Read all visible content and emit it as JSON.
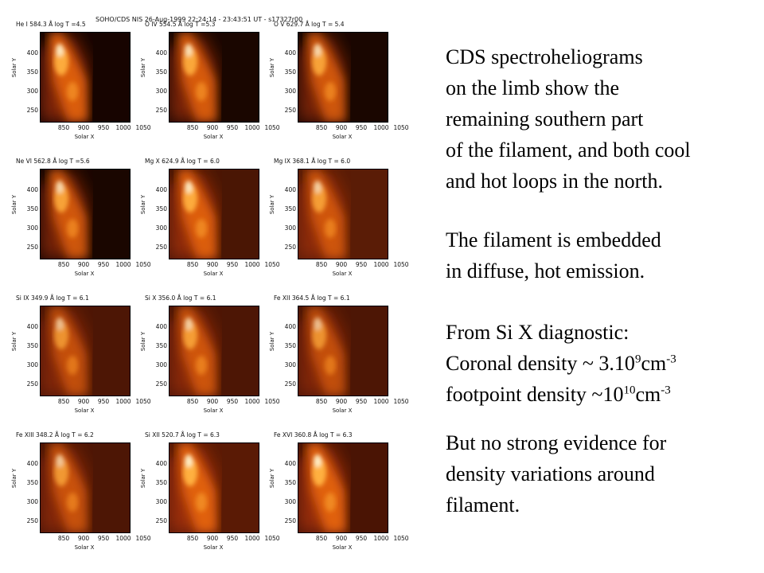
{
  "figure": {
    "header": "SOHO/CDS NIS  26-Aug-1999 22:24:14 - 23:43:51 UT - s17327r00",
    "ylabel": "Solar Y",
    "xlabel": "Solar X",
    "yticks": [
      "400",
      "350",
      "300",
      "250"
    ],
    "xticks": [
      "850",
      "900",
      "950",
      "1000",
      "1050"
    ],
    "panels": [
      {
        "title": "He I  584.3 Å log T =4.5"
      },
      {
        "title": "O IV  554.5 Å log T =5.3"
      },
      {
        "title": "O V  629.7 Å log T = 5.4"
      },
      {
        "title": "Ne VI  562.8 Å log T =5.6"
      },
      {
        "title": "Mg X  624.9 Å log T = 6.0"
      },
      {
        "title": "Mg IX  368.1 Å log T = 6.0"
      },
      {
        "title": "Si IX  349.9 Å log T = 6.1"
      },
      {
        "title": "Si X  356.0 Å log T = 6.1"
      },
      {
        "title": "Fe XII  364.5 Å log T = 6.1"
      },
      {
        "title": "Fe XIII  348.2 Å log T = 6.2"
      },
      {
        "title": "Si XII  520.7 Å log T = 6.3"
      },
      {
        "title": "Fe XVI  360.8 Å log T = 6.3"
      }
    ]
  },
  "text": {
    "p1": [
      "CDS spectroheliograms",
      "on the limb show the",
      "remaining southern part",
      "of the filament, and both cool",
      "and hot loops in the north."
    ],
    "p2": [
      "The filament is embedded",
      "in diffuse, hot emission."
    ],
    "p3": {
      "line1": "From Si X diagnostic:",
      "coronal_prefix": "Coronal density ~ 3.10",
      "coronal_exp": "9",
      "coronal_unit": "cm",
      "coronal_unit_exp": "-3",
      "footpoint_prefix": "footpoint density ~10",
      "footpoint_exp": "10",
      "footpoint_unit": "cm",
      "footpoint_unit_exp": "-3"
    },
    "p4": [
      "But no strong evidence for",
      "density variations around",
      "filament."
    ]
  }
}
